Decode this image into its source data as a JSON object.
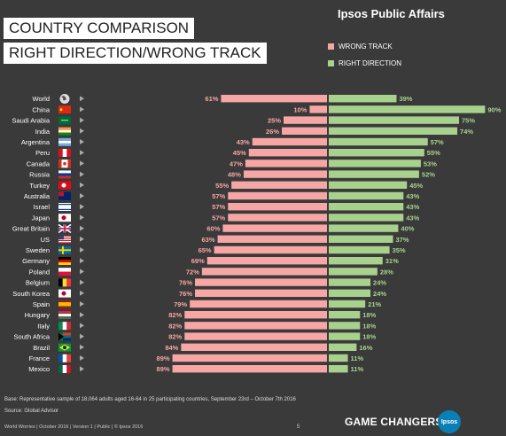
{
  "header": {
    "title_line1": "COUNTRY COMPARISON",
    "title_line2": "RIGHT DIRECTION/WRONG TRACK",
    "brand": "Ipsos Public Affairs"
  },
  "colors": {
    "background": "#3a3a3a",
    "wrong_track": "#f7a6a6",
    "right_direction": "#a9d18e",
    "text": "#ffffff"
  },
  "chart_data": {
    "type": "bar",
    "orientation": "horizontal-diverging",
    "categories": [
      "World",
      "China",
      "Saudi Arabia",
      "India",
      "Argentina",
      "Peru",
      "Canada",
      "Russia",
      "Turkey",
      "Australia",
      "Israel",
      "Japan",
      "Great Britain",
      "US",
      "Sweden",
      "Germany",
      "Poland",
      "Belgium",
      "South Korea",
      "Spain",
      "Hungary",
      "Italy",
      "South Africa",
      "Brazil",
      "France",
      "Mexico"
    ],
    "series": [
      {
        "name": "WRONG TRACK",
        "values": [
          61,
          10,
          25,
          26,
          43,
          45,
          47,
          48,
          55,
          57,
          57,
          57,
          60,
          63,
          65,
          69,
          72,
          76,
          76,
          79,
          82,
          82,
          82,
          84,
          89,
          89
        ]
      },
      {
        "name": "RIGHT DIRECTION",
        "values": [
          39,
          90,
          75,
          74,
          57,
          55,
          53,
          52,
          45,
          43,
          43,
          43,
          40,
          37,
          35,
          31,
          28,
          24,
          24,
          21,
          18,
          18,
          18,
          16,
          11,
          11
        ]
      }
    ],
    "value_suffix": "%",
    "legend_position": "top-right",
    "grid": false
  },
  "flag_icons": [
    "globe-icon",
    "flag-china-icon",
    "flag-saudi-arabia-icon",
    "flag-india-icon",
    "flag-argentina-icon",
    "flag-peru-icon",
    "flag-canada-icon",
    "flag-russia-icon",
    "flag-turkey-icon",
    "flag-australia-icon",
    "flag-israel-icon",
    "flag-japan-icon",
    "flag-great-britain-icon",
    "flag-us-icon",
    "flag-sweden-icon",
    "flag-germany-icon",
    "flag-poland-icon",
    "flag-belgium-icon",
    "flag-south-korea-icon",
    "flag-spain-icon",
    "flag-hungary-icon",
    "flag-italy-icon",
    "flag-south-africa-icon",
    "flag-brazil-icon",
    "flag-france-icon",
    "flag-mexico-icon"
  ],
  "notes": {
    "base": "Base: Representative sample of 18,064 adults aged 16-64 in 25 participating countries, September 23rd – October 7th 2016",
    "source": "Source: Global Advisor"
  },
  "footer": {
    "left": "World Worries | October 2016 | Version 1 | Public | © Ipsos 2016",
    "page": "5",
    "tagline": "GAME CHANGERS",
    "logo_text": "Ipsos"
  }
}
